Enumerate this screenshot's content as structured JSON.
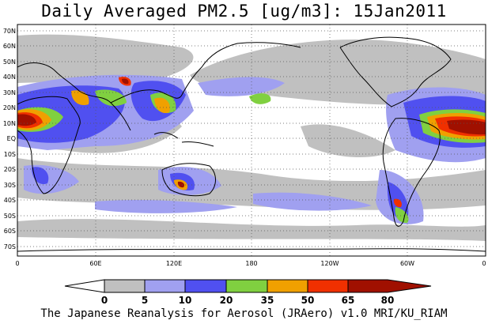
{
  "title": "Daily Averaged PM2.5 [ug/m3]: 15Jan2011",
  "credit": "The Japanese Reanalysis for Aerosol (JRAero) v1.0 MRI/KU_RIAM",
  "map": {
    "lat_labels": [
      "70N",
      "60N",
      "50N",
      "40N",
      "30N",
      "20N",
      "10N",
      "EQ",
      "10S",
      "20S",
      "30S",
      "40S",
      "50S",
      "60S",
      "70S"
    ],
    "lon_labels": [
      "0",
      "60E",
      "120E",
      "180",
      "120W",
      "60W",
      "0"
    ],
    "lat_range": [
      -75,
      75
    ],
    "lon_range": [
      0,
      360
    ],
    "grid_dotted": true
  },
  "colorbar": {
    "levels": [
      "0",
      "5",
      "10",
      "20",
      "35",
      "50",
      "65",
      "80"
    ],
    "colors": [
      "#ffffff",
      "#c0c0c0",
      "#a0a0f0",
      "#5050f0",
      "#80d040",
      "#f0a000",
      "#f03000",
      "#a01000"
    ]
  },
  "colors": {
    "land_line": "#000000",
    "background": "#ffffff"
  }
}
